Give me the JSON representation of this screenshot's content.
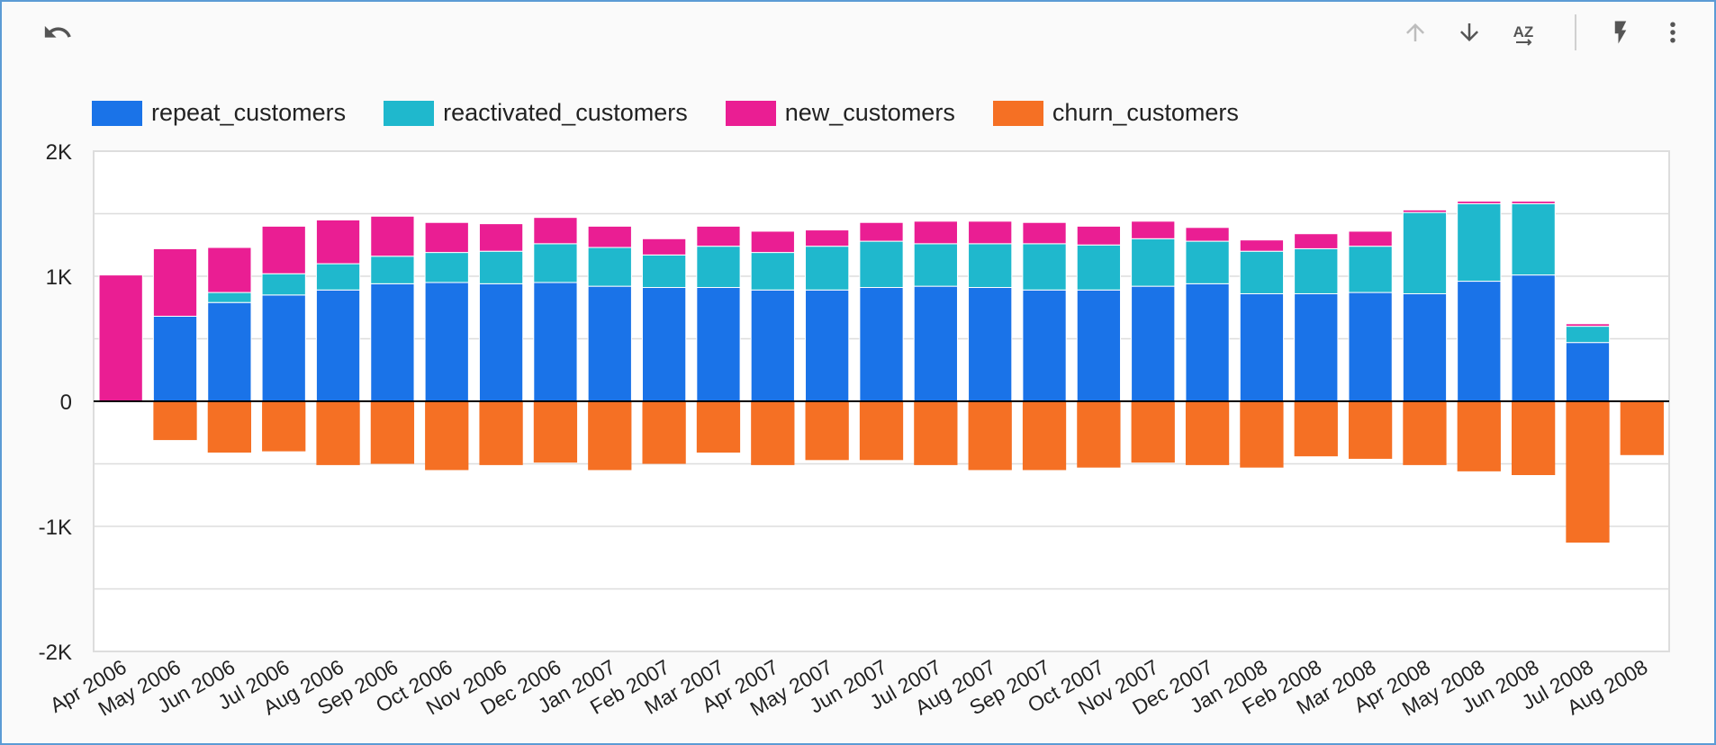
{
  "toolbar": {
    "undo_icon": "undo-icon",
    "sort_up_icon": "arrow-up-icon",
    "sort_down_icon": "arrow-down-icon",
    "sort_az_icon": "sort-az-icon",
    "sort_az_label": "AZ",
    "explore_icon": "lightning-icon",
    "more_icon": "more-vert-icon"
  },
  "colors": {
    "repeat_customers": "#1a73e8",
    "reactivated_customers": "#1fb8cd",
    "new_customers": "#ea1e93",
    "churn_customers": "#f57024",
    "grid": "#dddddd",
    "zero_line": "#000000"
  },
  "chart_data": {
    "type": "bar",
    "stacked": true,
    "legend_position": "top-left",
    "grid": true,
    "ylim": [
      -2000,
      2000
    ],
    "y_ticks": [
      {
        "value": 2000,
        "label": "2K"
      },
      {
        "value": 1000,
        "label": "1K"
      },
      {
        "value": 0,
        "label": "0"
      },
      {
        "value": -1000,
        "label": "-1K"
      },
      {
        "value": -2000,
        "label": "-2K"
      }
    ],
    "categories": [
      "Apr 2006",
      "May 2006",
      "Jun 2006",
      "Jul 2006",
      "Aug 2006",
      "Sep 2006",
      "Oct 2006",
      "Nov 2006",
      "Dec 2006",
      "Jan 2007",
      "Feb 2007",
      "Mar 2007",
      "Apr 2007",
      "May 2007",
      "Jun 2007",
      "Jul 2007",
      "Aug 2007",
      "Sep 2007",
      "Oct 2007",
      "Nov 2007",
      "Dec 2007",
      "Jan 2008",
      "Feb 2008",
      "Mar 2008",
      "Apr 2008",
      "May 2008",
      "Jun 2008",
      "Jul 2008",
      "Aug 2008"
    ],
    "series": [
      {
        "name": "repeat_customers",
        "values": [
          0,
          680,
          790,
          850,
          890,
          940,
          950,
          940,
          950,
          920,
          910,
          910,
          890,
          890,
          910,
          920,
          910,
          890,
          890,
          920,
          940,
          860,
          860,
          870,
          860,
          960,
          1010,
          470,
          0
        ]
      },
      {
        "name": "reactivated_customers",
        "values": [
          0,
          0,
          80,
          170,
          210,
          220,
          240,
          260,
          310,
          310,
          260,
          330,
          300,
          350,
          370,
          340,
          350,
          370,
          360,
          380,
          340,
          340,
          360,
          370,
          650,
          620,
          570,
          130,
          0
        ]
      },
      {
        "name": "new_customers",
        "values": [
          1010,
          540,
          360,
          380,
          350,
          320,
          240,
          220,
          210,
          170,
          130,
          160,
          170,
          130,
          150,
          180,
          180,
          170,
          150,
          140,
          110,
          90,
          120,
          120,
          20,
          20,
          20,
          20,
          0
        ]
      },
      {
        "name": "churn_customers",
        "values": [
          0,
          -310,
          -410,
          -400,
          -510,
          -500,
          -550,
          -510,
          -490,
          -550,
          -500,
          -410,
          -510,
          -470,
          -470,
          -510,
          -550,
          -550,
          -530,
          -490,
          -510,
          -530,
          -440,
          -460,
          -510,
          -560,
          -590,
          -1130,
          -430
        ]
      }
    ]
  }
}
